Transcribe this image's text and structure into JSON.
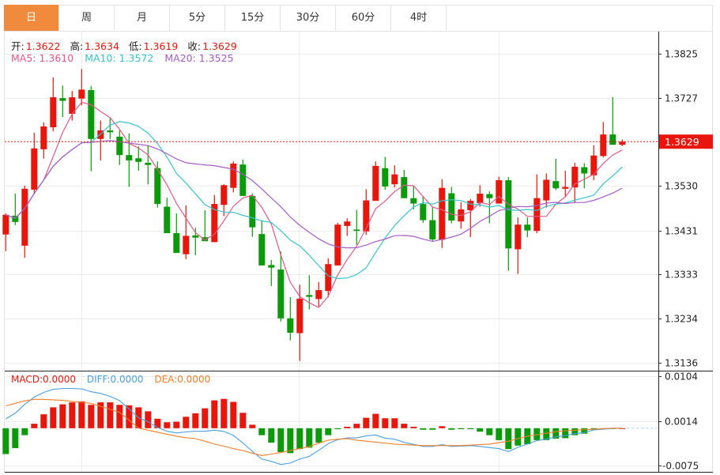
{
  "tabs": [
    {
      "label": "日",
      "active": true
    },
    {
      "label": "周"
    },
    {
      "label": "月"
    },
    {
      "label": "5分"
    },
    {
      "label": "15分"
    },
    {
      "label": "30分"
    },
    {
      "label": "60分"
    },
    {
      "label": "4时"
    }
  ],
  "ohlc_info": {
    "open_label": "开:",
    "open": "1.3622",
    "high_label": "高:",
    "high": "1.3634",
    "low_label": "低:",
    "low": "1.3619",
    "close_label": "收:",
    "close": "1.3629"
  },
  "ma_info": {
    "ma5": "MA5: 1.3610",
    "ma10": "MA10: 1.3572",
    "ma20": "MA20: 1.3525"
  },
  "macd_info": {
    "macd": "MACD:0.0000",
    "diff": "DIFF:0.0000",
    "dea": "DEA:0.0000"
  },
  "colors": {
    "up": "#e8160c",
    "down": "#0a9a0a",
    "ma5": "#e0588a",
    "ma10": "#38c4cc",
    "ma20": "#a55cc4",
    "diff": "#4a9ee0",
    "dea": "#f07e2a",
    "active_tab": "#f08a3c"
  },
  "chart_data": [
    {
      "type": "candlestick",
      "price_ticks": [
        "1.3825",
        "1.3727",
        "1.3530",
        "1.3431",
        "1.3333",
        "1.3234",
        "1.3136"
      ],
      "ylim": [
        1.3136,
        1.3825
      ],
      "current_price": "1.3629",
      "moving_averages": [
        5,
        10,
        20
      ],
      "grid": true,
      "candles": [
        [
          1.3422,
          1.3469,
          1.3385,
          1.3466
        ],
        [
          1.3464,
          1.3513,
          1.3443,
          1.345
        ],
        [
          1.3397,
          1.3531,
          1.337,
          1.3524
        ],
        [
          1.3522,
          1.3649,
          1.3513,
          1.3614
        ],
        [
          1.3612,
          1.3672,
          1.3591,
          1.3663
        ],
        [
          1.3661,
          1.3772,
          1.3652,
          1.3728
        ],
        [
          1.3726,
          1.3754,
          1.3684,
          1.372
        ],
        [
          1.3691,
          1.3742,
          1.3676,
          1.3728
        ],
        [
          1.3725,
          1.3791,
          1.371,
          1.3745
        ],
        [
          1.3744,
          1.3753,
          1.3563,
          1.3635
        ],
        [
          1.3635,
          1.3676,
          1.3587,
          1.3654
        ],
        [
          1.3654,
          1.3682,
          1.3635,
          1.365
        ],
        [
          1.364,
          1.3654,
          1.3577,
          1.3599
        ],
        [
          1.3599,
          1.3647,
          1.3528,
          1.3587
        ],
        [
          1.3592,
          1.3619,
          1.3564,
          1.3584
        ],
        [
          1.3582,
          1.3621,
          1.3534,
          1.3577
        ],
        [
          1.357,
          1.3585,
          1.3482,
          1.349
        ],
        [
          1.3484,
          1.3504,
          1.3425,
          1.3425
        ],
        [
          1.3425,
          1.3469,
          1.3381,
          1.3381
        ],
        [
          1.3378,
          1.3487,
          1.3367,
          1.3419
        ],
        [
          1.342,
          1.3437,
          1.3376,
          1.3415
        ],
        [
          1.3416,
          1.3476,
          1.3407,
          1.3407
        ],
        [
          1.3405,
          1.351,
          1.3405,
          1.349
        ],
        [
          1.3488,
          1.3534,
          1.3463,
          1.3532
        ],
        [
          1.3526,
          1.3585,
          1.3516,
          1.358
        ],
        [
          1.3578,
          1.3589,
          1.3508,
          1.3508
        ],
        [
          1.3508,
          1.3513,
          1.3417,
          1.3438
        ],
        [
          1.3423,
          1.3453,
          1.3353,
          1.3353
        ],
        [
          1.3354,
          1.3365,
          1.3307,
          1.3348
        ],
        [
          1.3344,
          1.3384,
          1.3228,
          1.3235
        ],
        [
          1.3235,
          1.3282,
          1.3186,
          1.3203
        ],
        [
          1.3202,
          1.331,
          1.314,
          1.3279
        ],
        [
          1.3287,
          1.3331,
          1.3255,
          1.3283
        ],
        [
          1.3278,
          1.3316,
          1.3262,
          1.3298
        ],
        [
          1.3296,
          1.3369,
          1.3282,
          1.3356
        ],
        [
          1.3353,
          1.3448,
          1.3353,
          1.3444
        ],
        [
          1.3441,
          1.3458,
          1.3419,
          1.3451
        ],
        [
          1.3433,
          1.3477,
          1.3399,
          1.343
        ],
        [
          1.3429,
          1.3523,
          1.3421,
          1.3498
        ],
        [
          1.3497,
          1.3585,
          1.3497,
          1.3575
        ],
        [
          1.357,
          1.3595,
          1.3522,
          1.3529
        ],
        [
          1.3534,
          1.3576,
          1.3527,
          1.3556
        ],
        [
          1.355,
          1.3566,
          1.3503,
          1.3503
        ],
        [
          1.3503,
          1.3531,
          1.3478,
          1.3491
        ],
        [
          1.349,
          1.3507,
          1.3448,
          1.3454
        ],
        [
          1.3454,
          1.3484,
          1.3407,
          1.3411
        ],
        [
          1.341,
          1.3545,
          1.3392,
          1.3526
        ],
        [
          1.3514,
          1.3528,
          1.3447,
          1.3453
        ],
        [
          1.3451,
          1.3494,
          1.3435,
          1.3478
        ],
        [
          1.3476,
          1.3501,
          1.3416,
          1.3497
        ],
        [
          1.3492,
          1.3532,
          1.3484,
          1.3513
        ],
        [
          1.3512,
          1.3518,
          1.3447,
          1.3503
        ],
        [
          1.3491,
          1.3551,
          1.3491,
          1.3543
        ],
        [
          1.3543,
          1.355,
          1.3341,
          1.3391
        ],
        [
          1.3389,
          1.346,
          1.3334,
          1.3444
        ],
        [
          1.3444,
          1.346,
          1.3416,
          1.3431
        ],
        [
          1.343,
          1.3556,
          1.3425,
          1.3503
        ],
        [
          1.3498,
          1.3558,
          1.3482,
          1.3544
        ],
        [
          1.3541,
          1.3591,
          1.3521,
          1.3525
        ],
        [
          1.3524,
          1.3564,
          1.3507,
          1.3528
        ],
        [
          1.3527,
          1.3582,
          1.3492,
          1.3573
        ],
        [
          1.3572,
          1.3581,
          1.3525,
          1.3558
        ],
        [
          1.3554,
          1.3621,
          1.3543,
          1.3598
        ],
        [
          1.3597,
          1.3673,
          1.3594,
          1.3645
        ],
        [
          1.3645,
          1.3728,
          1.3622,
          1.3622
        ],
        [
          1.3622,
          1.3634,
          1.3619,
          1.3629
        ]
      ]
    },
    {
      "type": "bar",
      "indicator": "MACD",
      "ticks": [
        "0.0104",
        "0.0014",
        "-0.0075"
      ],
      "ylim": [
        -0.0075,
        0.0104
      ],
      "macd": [
        -0.0052,
        -0.004,
        -0.0014,
        0.0009,
        0.0028,
        0.0042,
        0.0048,
        0.0052,
        0.0054,
        0.0047,
        0.0052,
        0.0052,
        0.0047,
        0.0046,
        0.0042,
        0.0034,
        0.0019,
        0.0012,
        0.0013,
        0.0023,
        0.003,
        0.004,
        0.0056,
        0.0059,
        0.0053,
        0.0031,
        0.0007,
        -0.0014,
        -0.0029,
        -0.0048,
        -0.005,
        -0.0042,
        -0.0039,
        -0.0029,
        -0.0014,
        -0.0002,
        0.0003,
        0.0009,
        0.0021,
        0.0029,
        0.002,
        0.002,
        0.0009,
        0.0003,
        -0.0003,
        -0.0003,
        0.0004,
        -0.0003,
        -0.0002,
        -0.0002,
        -0.0007,
        -0.0014,
        -0.0024,
        -0.0042,
        -0.0035,
        -0.0032,
        -0.0024,
        -0.0024,
        -0.0021,
        -0.002,
        -0.0014,
        -0.0011,
        -0.0003,
        -0.0002,
        -0.0001,
        0.0
      ],
      "dea": [
        0.0045,
        0.005,
        0.0055,
        0.0058,
        0.0058,
        0.0057,
        0.0056,
        0.0054,
        0.0052,
        0.005,
        0.0044,
        0.0038,
        0.0032,
        0.0016,
        0.0,
        -0.0004,
        -0.0008,
        -0.0012,
        -0.0016,
        -0.0019,
        -0.0021,
        -0.0026,
        -0.0032,
        -0.0036,
        -0.0041,
        -0.0045,
        -0.005,
        -0.0055,
        -0.0052,
        -0.0049,
        -0.0045,
        -0.0041,
        -0.0037,
        -0.003,
        -0.0024,
        -0.0022,
        -0.0021,
        -0.0024,
        -0.0026,
        -0.0028,
        -0.003,
        -0.0032,
        -0.0033,
        -0.0034,
        -0.0035,
        -0.0035,
        -0.0035,
        -0.0035,
        -0.0035,
        -0.0034,
        -0.0033,
        -0.0032,
        -0.0029,
        -0.0026,
        -0.0021,
        -0.0016,
        -0.0013,
        -0.001,
        -0.0007,
        -0.0005,
        -0.0004,
        -0.0003,
        -0.0002,
        -0.0001,
        0.0,
        0.0
      ]
    }
  ]
}
